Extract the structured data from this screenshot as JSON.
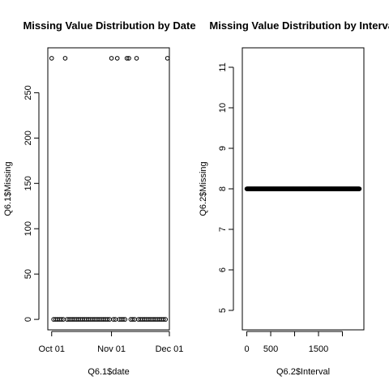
{
  "chart_data": [
    {
      "type": "scatter",
      "title": "Missing Value Distribution by Date",
      "xlabel": "Q6.1$date",
      "ylabel": "Q6.1$Missing",
      "x_ticks": [
        {
          "label": "Oct 01",
          "value": "2012-10-01"
        },
        {
          "label": "Nov 01",
          "value": "2012-11-01"
        },
        {
          "label": "Dec 01",
          "value": "2012-12-01"
        }
      ],
      "y_ticks": [
        0,
        50,
        100,
        150,
        200,
        250
      ],
      "xlim": [
        "2012-09-29",
        "2012-12-01"
      ],
      "ylim": [
        -11.52,
        299.52
      ],
      "points": [
        {
          "x": "2012-10-01",
          "y": 288
        },
        {
          "x": "2012-10-02",
          "y": 0
        },
        {
          "x": "2012-10-03",
          "y": 0
        },
        {
          "x": "2012-10-04",
          "y": 0
        },
        {
          "x": "2012-10-05",
          "y": 0
        },
        {
          "x": "2012-10-06",
          "y": 0
        },
        {
          "x": "2012-10-07",
          "y": 0
        },
        {
          "x": "2012-10-08",
          "y": 288
        },
        {
          "x": "2012-10-09",
          "y": 0
        },
        {
          "x": "2012-10-10",
          "y": 0
        },
        {
          "x": "2012-10-11",
          "y": 0
        },
        {
          "x": "2012-10-12",
          "y": 0
        },
        {
          "x": "2012-10-13",
          "y": 0
        },
        {
          "x": "2012-10-14",
          "y": 0
        },
        {
          "x": "2012-10-15",
          "y": 0
        },
        {
          "x": "2012-10-16",
          "y": 0
        },
        {
          "x": "2012-10-17",
          "y": 0
        },
        {
          "x": "2012-10-18",
          "y": 0
        },
        {
          "x": "2012-10-19",
          "y": 0
        },
        {
          "x": "2012-10-20",
          "y": 0
        },
        {
          "x": "2012-10-21",
          "y": 0
        },
        {
          "x": "2012-10-22",
          "y": 0
        },
        {
          "x": "2012-10-23",
          "y": 0
        },
        {
          "x": "2012-10-24",
          "y": 0
        },
        {
          "x": "2012-10-25",
          "y": 0
        },
        {
          "x": "2012-10-26",
          "y": 0
        },
        {
          "x": "2012-10-27",
          "y": 0
        },
        {
          "x": "2012-10-28",
          "y": 0
        },
        {
          "x": "2012-10-29",
          "y": 0
        },
        {
          "x": "2012-10-30",
          "y": 0
        },
        {
          "x": "2012-10-31",
          "y": 0
        },
        {
          "x": "2012-11-01",
          "y": 288
        },
        {
          "x": "2012-11-02",
          "y": 0
        },
        {
          "x": "2012-11-03",
          "y": 0
        },
        {
          "x": "2012-11-04",
          "y": 288
        },
        {
          "x": "2012-11-05",
          "y": 0
        },
        {
          "x": "2012-11-06",
          "y": 0
        },
        {
          "x": "2012-11-07",
          "y": 0
        },
        {
          "x": "2012-11-08",
          "y": 0
        },
        {
          "x": "2012-11-09",
          "y": 288
        },
        {
          "x": "2012-11-10",
          "y": 288
        },
        {
          "x": "2012-11-11",
          "y": 0
        },
        {
          "x": "2012-11-12",
          "y": 0
        },
        {
          "x": "2012-11-13",
          "y": 0
        },
        {
          "x": "2012-11-14",
          "y": 288
        },
        {
          "x": "2012-11-15",
          "y": 0
        },
        {
          "x": "2012-11-16",
          "y": 0
        },
        {
          "x": "2012-11-17",
          "y": 0
        },
        {
          "x": "2012-11-18",
          "y": 0
        },
        {
          "x": "2012-11-19",
          "y": 0
        },
        {
          "x": "2012-11-20",
          "y": 0
        },
        {
          "x": "2012-11-21",
          "y": 0
        },
        {
          "x": "2012-11-22",
          "y": 0
        },
        {
          "x": "2012-11-23",
          "y": 0
        },
        {
          "x": "2012-11-24",
          "y": 0
        },
        {
          "x": "2012-11-25",
          "y": 0
        },
        {
          "x": "2012-11-26",
          "y": 0
        },
        {
          "x": "2012-11-27",
          "y": 0
        },
        {
          "x": "2012-11-28",
          "y": 0
        },
        {
          "x": "2012-11-29",
          "y": 0
        },
        {
          "x": "2012-11-30",
          "y": 288
        }
      ]
    },
    {
      "type": "scatter",
      "title": "Missing Value Distribution by Interval",
      "xlabel": "Q6.2$Interval",
      "ylabel": "Q6.2$Missing",
      "x_ticks": [
        0,
        500,
        1500
      ],
      "y_ticks": [
        5,
        6,
        7,
        8,
        9,
        10,
        11
      ],
      "xlim": [
        -94.2,
        2449.2
      ],
      "ylim": [
        4.52,
        11.48
      ],
      "x_range": [
        0,
        2355
      ],
      "x_step": 5,
      "constant_y": 8,
      "points_note": "288 intervals, each with 8 missing"
    }
  ]
}
